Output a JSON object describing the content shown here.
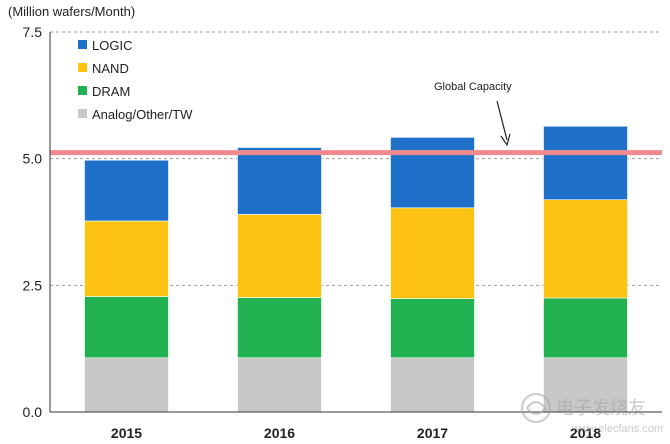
{
  "chart_data": {
    "type": "bar",
    "stacked": true,
    "title": "",
    "ylabel": "(Million wafers/Month)",
    "xlabel": "",
    "ylim": [
      0,
      7.5
    ],
    "yticks": [
      "0.0",
      "2.5",
      "5.0",
      "7.5"
    ],
    "ytick_values": [
      0,
      2.5,
      5.0,
      7.5
    ],
    "categories": [
      "2015",
      "2016",
      "2017",
      "2018"
    ],
    "series": [
      {
        "name": "Analog/Other/TW",
        "color": "#c8c8c8",
        "values": [
          1.07,
          1.07,
          1.07,
          1.07
        ]
      },
      {
        "name": "DRAM",
        "color": "#22b251",
        "values": [
          1.21,
          1.19,
          1.17,
          1.18
        ]
      },
      {
        "name": "NAND",
        "color": "#fcc312",
        "values": [
          1.49,
          1.64,
          1.79,
          1.94
        ]
      },
      {
        "name": "LOGIC",
        "color": "#1e70c8",
        "values": [
          1.2,
          1.32,
          1.39,
          1.45
        ]
      }
    ],
    "legend": [
      "LOGIC",
      "NAND",
      "DRAM",
      "Analog/Other/TW"
    ],
    "legend_position": "top-left",
    "grid": "dashed horizontal",
    "reference_line": {
      "value": 5.12,
      "color": "#f08a8e"
    },
    "annotations": [
      {
        "text": "Global Capacity"
      }
    ]
  },
  "watermark": {
    "text": "电子发烧友",
    "url_text": "www.elecfans.com"
  }
}
